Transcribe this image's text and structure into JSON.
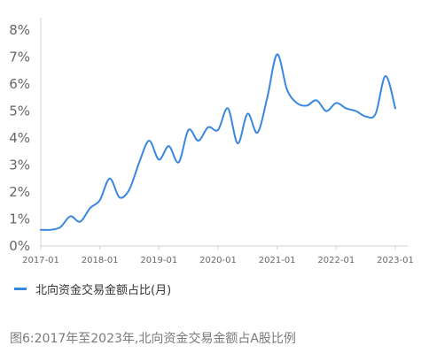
{
  "chart_data": {
    "type": "line",
    "title": "",
    "xlabel": "",
    "ylabel": "",
    "y_ticks": [
      "0%",
      "1%",
      "2%",
      "3%",
      "4%",
      "5%",
      "6%",
      "7%",
      "8%"
    ],
    "x_ticks": [
      "2017-01",
      "2018-01",
      "2019-01",
      "2020-01",
      "2021-01",
      "2022-01",
      "2023-01"
    ],
    "ylim": [
      0,
      8
    ],
    "grid": false,
    "legend_position": "bottom-left",
    "line_color": "#3a87e0",
    "series": [
      {
        "name": "北向资金交易金额占比(月)",
        "x": [
          "2017-01",
          "2017-03",
          "2017-05",
          "2017-07",
          "2017-09",
          "2017-11",
          "2018-01",
          "2018-03",
          "2018-05",
          "2018-07",
          "2018-09",
          "2018-11",
          "2019-01",
          "2019-03",
          "2019-05",
          "2019-07",
          "2019-09",
          "2019-11",
          "2020-01",
          "2020-03",
          "2020-05",
          "2020-07",
          "2020-09",
          "2020-11",
          "2021-01",
          "2021-03",
          "2021-05",
          "2021-07",
          "2021-09",
          "2021-11",
          "2022-01",
          "2022-03",
          "2022-05",
          "2022-07",
          "2022-09",
          "2022-11",
          "2023-01"
        ],
        "values": [
          0.6,
          0.6,
          0.7,
          1.1,
          0.9,
          1.4,
          1.7,
          2.5,
          1.8,
          2.1,
          3.1,
          3.9,
          3.2,
          3.7,
          3.1,
          4.3,
          3.9,
          4.4,
          4.3,
          5.1,
          3.8,
          4.9,
          4.2,
          5.5,
          7.1,
          5.8,
          5.3,
          5.2,
          5.4,
          5.0,
          5.3,
          5.1,
          5.0,
          4.8,
          4.9,
          6.3,
          5.1
        ]
      }
    ]
  },
  "legend": {
    "label": "北向资金交易金额占比(月)"
  },
  "caption": {
    "text": "图6:2017年至2023年,北向资金交易金额占A股比例"
  }
}
